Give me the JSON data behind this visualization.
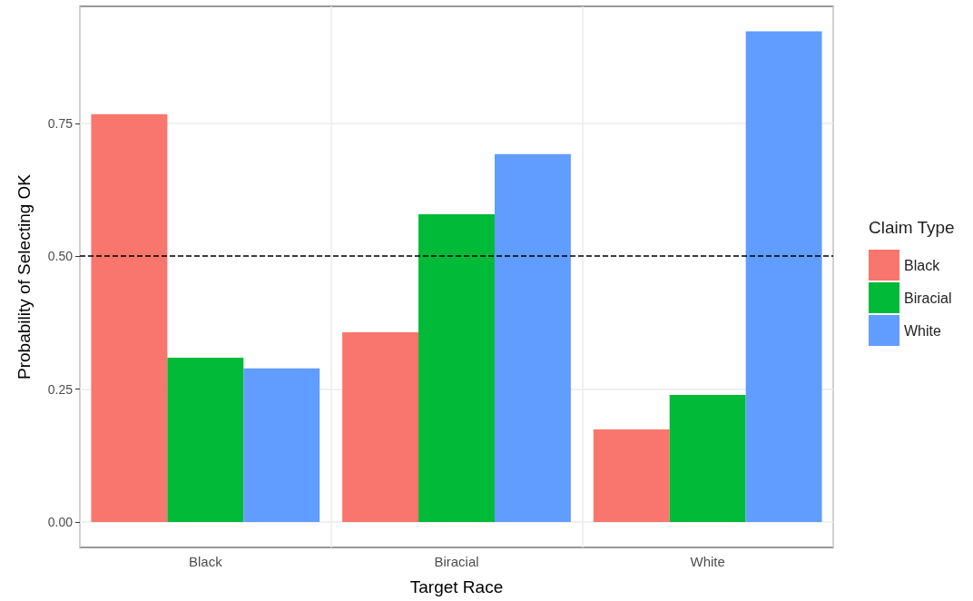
{
  "chart_data": {
    "type": "bar",
    "xlabel": "Target Race",
    "ylabel": "Probability of Selecting OK",
    "legend_title": "Claim Type",
    "legend": "right",
    "categories": [
      "Black",
      "Biracial",
      "White"
    ],
    "series": [
      {
        "name": "Black",
        "color": "#f8766d",
        "values": [
          0.767,
          0.357,
          0.174
        ]
      },
      {
        "name": "Biracial",
        "color": "#00ba38",
        "values": [
          0.309,
          0.579,
          0.239
        ]
      },
      {
        "name": "White",
        "color": "#619cff",
        "values": [
          0.289,
          0.692,
          0.923
        ]
      }
    ],
    "ylim": [
      -0.048,
      0.97
    ],
    "yticks": [
      {
        "value": 0,
        "label": "0.00"
      },
      {
        "value": 0.25,
        "label": "0.25"
      },
      {
        "value": 0.5,
        "label": "0.50"
      },
      {
        "value": 0.75,
        "label": "0.75"
      }
    ],
    "grid": true,
    "ref_lines": [
      {
        "axis": "y",
        "value": 0.5,
        "color": "#000000",
        "line_style": "dashed"
      }
    ]
  }
}
